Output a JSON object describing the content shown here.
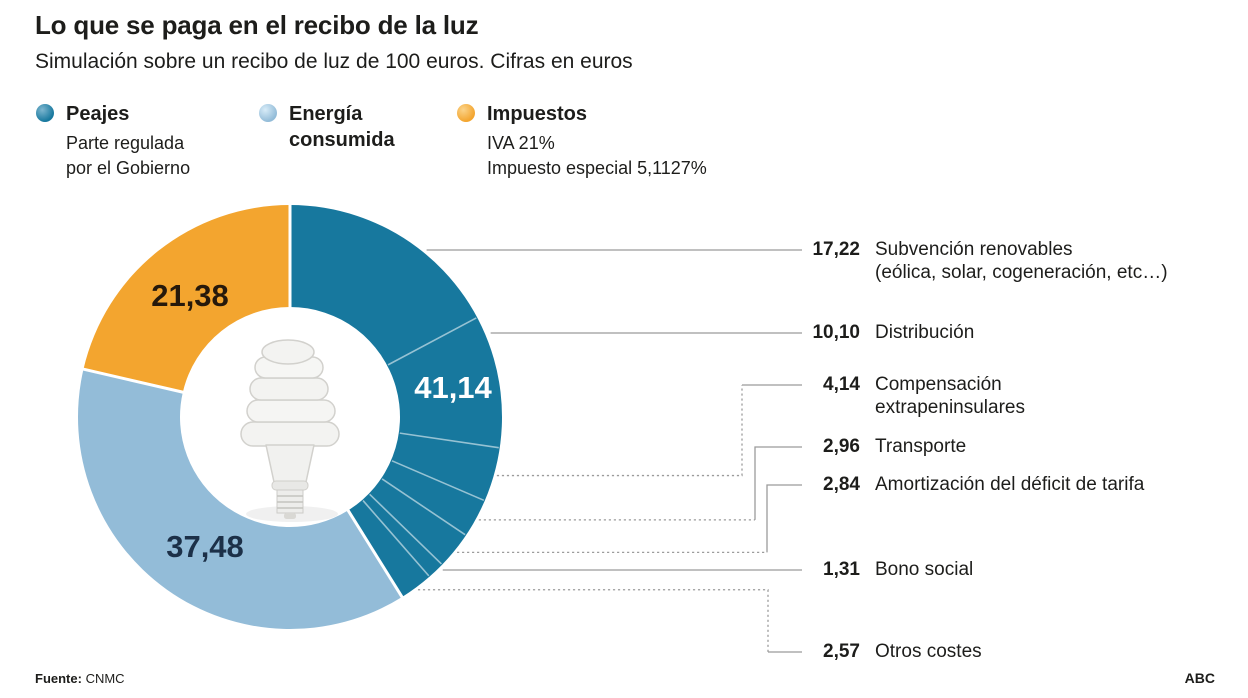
{
  "header": {
    "title": "Lo que se paga en el recibo de la luz",
    "subtitle": "Simulación sobre un recibo de luz de 100 euros. Cifras en euros"
  },
  "legend": [
    {
      "label": "Peajes",
      "sublabel": "Parte regulada\npor el Gobierno",
      "color": "#17789E",
      "color_light": "#7db6cf"
    },
    {
      "label": "Energía\nconsumida",
      "sublabel": "",
      "color": "#93BCD8",
      "color_light": "#d8ecf8"
    },
    {
      "label": "Impuestos",
      "sublabel": "IVA 21%\nImpuesto especial 5,1127%",
      "color": "#F3A52F",
      "color_light": "#fbd389"
    }
  ],
  "chart_data": {
    "type": "pie",
    "style": "donut",
    "title": "Lo que se paga en el recibo de la luz",
    "subtitle": "Simulación sobre un recibo de luz de 100 euros. Cifras en euros",
    "units": "euros",
    "total": 100,
    "center_decoration": "spiral-cfl-lightbulb-photo",
    "segments": [
      {
        "name": "Peajes",
        "note": "Parte regulada por el Gobierno",
        "value": 41.14,
        "display": "41,14",
        "color": "#17789E",
        "label_color": "#ffffff"
      },
      {
        "name": "Energía consumida",
        "value": 37.48,
        "display": "37,48",
        "color": "#93BCD8",
        "label_color": "#1c3048"
      },
      {
        "name": "Impuestos",
        "note": "IVA 21% / Impuesto especial 5,1127%",
        "value": 21.38,
        "display": "21,38",
        "color": "#F3A52F",
        "label_color": "#26190b"
      }
    ],
    "breakdown_of": "Peajes",
    "breakdown": [
      {
        "value": 17.22,
        "display": "17,22",
        "label": "Subvención renovables\n(eólica, solar, cogeneración, etc…)"
      },
      {
        "value": 10.1,
        "display": "10,10",
        "label": "Distribución"
      },
      {
        "value": 4.14,
        "display": "4,14",
        "label": "Compensación\nextrapeninsulares"
      },
      {
        "value": 2.96,
        "display": "2,96",
        "label": "Transporte"
      },
      {
        "value": 2.84,
        "display": "2,84",
        "label": "Amortización del déficit de tarifa"
      },
      {
        "value": 1.31,
        "display": "1,31",
        "label": "Bono social"
      },
      {
        "value": 2.57,
        "display": "2,57",
        "label": "Otros costes"
      }
    ],
    "leader_line_color": "#9b9b9b"
  },
  "footer": {
    "source_label": "Fuente:",
    "source": "CNMC",
    "credit": "ABC"
  }
}
